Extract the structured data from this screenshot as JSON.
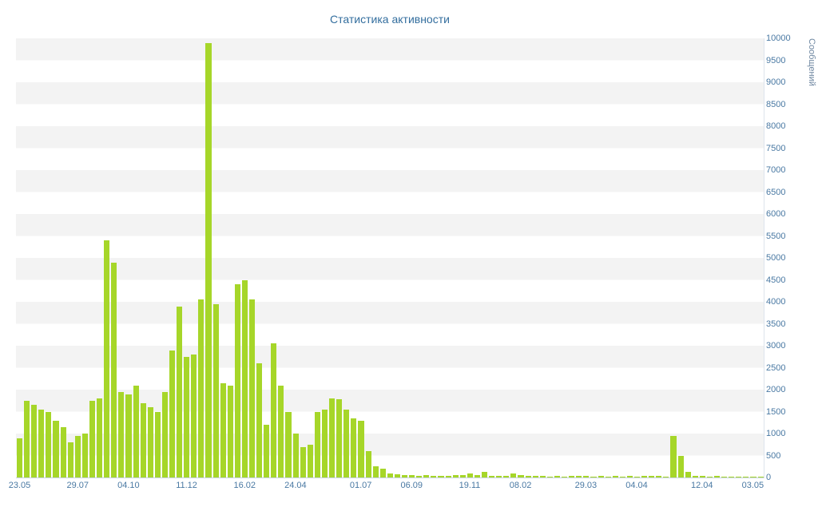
{
  "title": "Статистика активности",
  "colors": {
    "bar": "#a6d629",
    "title_text": "#336e9e",
    "tick_text": "#4a79a3",
    "axis_title_text": "#6d86a0",
    "stripe": "#f3f3f3",
    "axis_line": "#c7d3e0"
  },
  "chart_data": {
    "type": "bar",
    "title": "Статистика активности",
    "xlabel": "",
    "ylabel": "Сообщений",
    "ylim": [
      0,
      10000
    ],
    "ytick_step": 500,
    "grid": "horizontal-stripes",
    "legend": "none",
    "y_ticks": [
      0,
      500,
      1000,
      1500,
      2000,
      2500,
      3000,
      3500,
      4000,
      4500,
      5000,
      5500,
      6000,
      6500,
      7000,
      7500,
      8000,
      8500,
      9000,
      9500,
      10000
    ],
    "x_ticks": [
      {
        "index": 0,
        "label": "23.05"
      },
      {
        "index": 8,
        "label": "29.07"
      },
      {
        "index": 15,
        "label": "04.10"
      },
      {
        "index": 23,
        "label": "11.12"
      },
      {
        "index": 31,
        "label": "16.02"
      },
      {
        "index": 38,
        "label": "24.04"
      },
      {
        "index": 47,
        "label": "01.07"
      },
      {
        "index": 54,
        "label": "06.09"
      },
      {
        "index": 62,
        "label": "19.11"
      },
      {
        "index": 69,
        "label": "08.02"
      },
      {
        "index": 78,
        "label": "29.03"
      },
      {
        "index": 85,
        "label": "04.04"
      },
      {
        "index": 94,
        "label": "12.04"
      },
      {
        "index": 101,
        "label": "03.05"
      }
    ],
    "values": [
      900,
      1750,
      1650,
      1550,
      1500,
      1300,
      1150,
      800,
      950,
      1000,
      1750,
      1800,
      5400,
      4900,
      1950,
      1900,
      2100,
      1700,
      1600,
      1500,
      1950,
      2900,
      3900,
      2750,
      2800,
      4050,
      9900,
      3950,
      2150,
      2100,
      4400,
      4500,
      4050,
      2600,
      1200,
      3050,
      2100,
      1500,
      1000,
      700,
      750,
      1500,
      1550,
      1800,
      1780,
      1550,
      1350,
      1300,
      600,
      250,
      200,
      100,
      80,
      60,
      50,
      40,
      50,
      40,
      30,
      40,
      50,
      60,
      100,
      60,
      130,
      40,
      30,
      40,
      100,
      60,
      30,
      40,
      30,
      20,
      30,
      20,
      30,
      40,
      30,
      20,
      30,
      20,
      30,
      20,
      30,
      20,
      30,
      40,
      30,
      20,
      950,
      500,
      120,
      40,
      30,
      20,
      30,
      20,
      10,
      20,
      10,
      10,
      10
    ]
  }
}
